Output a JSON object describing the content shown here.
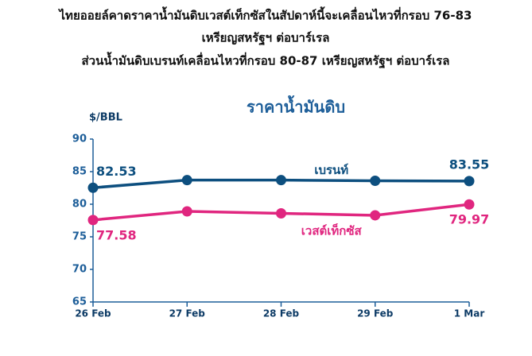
{
  "chart_data": {
    "type": "line",
    "title_lines": [
      "ไทยออยล์คาดราคาน้ำมันดิบเวสต์เท็กซัสในสัปดาห์นี้จะเคลื่อนไหวที่กรอบ 76-83",
      "เหรียญสหรัฐฯ ต่อบาร์เรล",
      "ส่วนน้ำมันดิบเบรนท์เคลื่อนไหวที่กรอบ 80-87 เหรียญสหรัฐฯ ต่อบาร์เรล"
    ],
    "chart_title": "ราคาน้ำมันดิบ",
    "y_label": "$/BBL",
    "categories": [
      "26 Feb",
      "27 Feb",
      "28 Feb",
      "29 Feb",
      "1 Mar"
    ],
    "series": [
      {
        "name": "เบรนท์",
        "color": "#0d4f7f",
        "values": [
          82.53,
          83.7,
          83.7,
          83.6,
          83.55
        ],
        "value_labels": [
          "82.53",
          null,
          null,
          null,
          "83.55"
        ]
      },
      {
        "name": "เวสต์เท็กซัส",
        "color": "#e0267f",
        "values": [
          77.58,
          78.9,
          78.6,
          78.3,
          79.97
        ],
        "value_labels": [
          "77.58",
          null,
          null,
          null,
          "79.97"
        ]
      }
    ],
    "ylim": [
      65,
      90
    ],
    "yticks": [
      65,
      70,
      75,
      80,
      85,
      90
    ]
  }
}
